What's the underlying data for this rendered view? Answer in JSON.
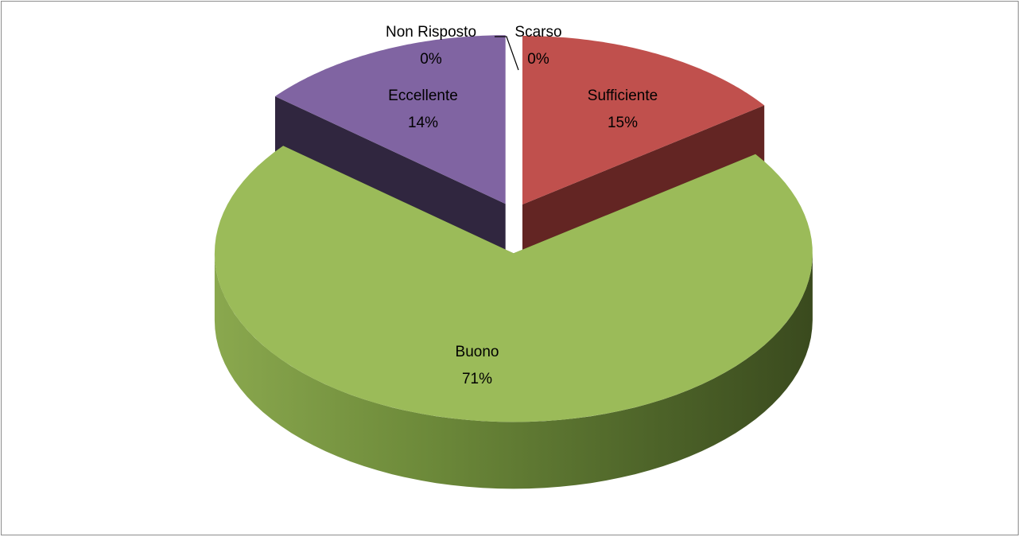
{
  "chart_data": {
    "type": "pie",
    "style": "3d-exploded",
    "title": "",
    "legend": "none",
    "slices": [
      {
        "name": "Sufficiente",
        "value": 15,
        "label": "15%",
        "color": "#c0504d",
        "side_color": "#632523"
      },
      {
        "name": "Buono",
        "value": 71,
        "label": "71%",
        "color": "#9bbb59",
        "side_color": "#4f6228"
      },
      {
        "name": "Eccellente",
        "value": 14,
        "label": "14%",
        "color": "#8064a2",
        "side_color": "#30263f"
      },
      {
        "name": "Non Risposto",
        "value": 0,
        "label": "0%",
        "color": "#4bacc6",
        "side_color": "#215968"
      },
      {
        "name": "Scarso",
        "value": 0,
        "label": "0%",
        "color": "#f79646",
        "side_color": "#984807"
      }
    ]
  }
}
